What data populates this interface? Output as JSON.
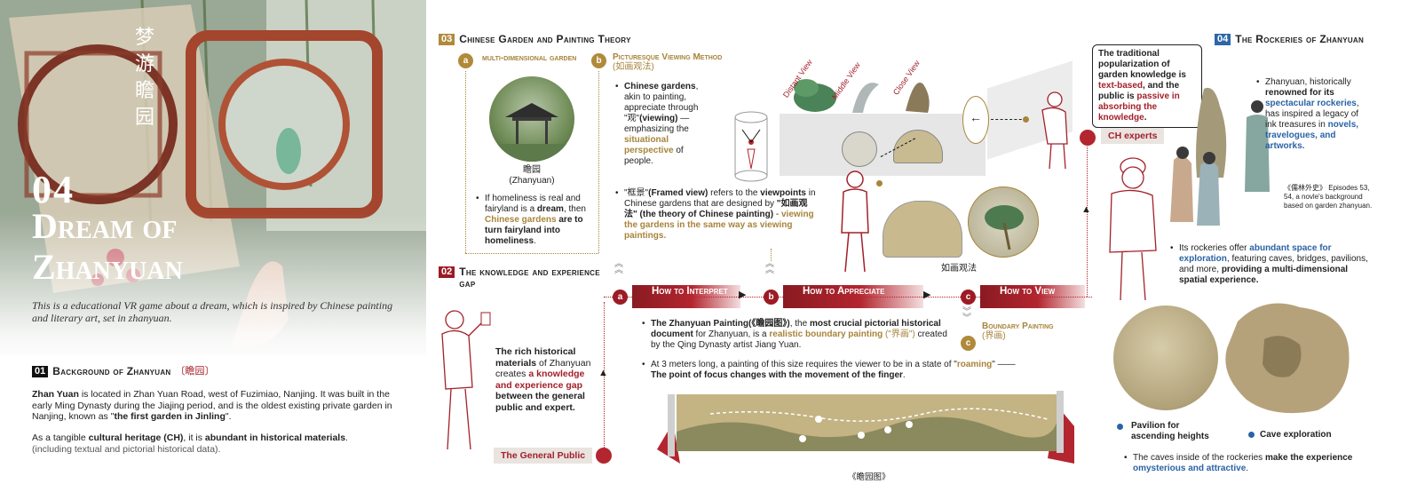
{
  "hero": {
    "number": "04",
    "title": "Dream of Zhanyuan",
    "subtitle": "This is a educational VR game about a dream, which is inspired by Chinese painting and literary art, set in zhanyuan.",
    "calligraphy": "梦游瞻园"
  },
  "sec01": {
    "badge": "01",
    "title": "Background of Zhanyuan",
    "title_cn": "〔瞻园〕",
    "p1_lead": "Zhan Yuan",
    "p1_a": " is located in Zhan Yuan Road, west of Fuzimiao, Nanjing. It was built in the early Ming Dynasty during the Jiajing period, and is the oldest existing private garden in Nanjing, known as \"",
    "p1_bold": "the first garden in Jinling",
    "p1_end": "\".",
    "p2_a": "As a tangible ",
    "p2_b1": "cultural heritage (CH)",
    "p2_b": ", it is ",
    "p2_b2": "abundant in historical materials",
    "p2_end": ".",
    "p2_note": "(including textual and pictorial historical data)."
  },
  "sec03": {
    "badge": "03",
    "title": "Chinese Garden and Painting Theory",
    "a_badge": "a",
    "a_title": "multi-dimensional garden",
    "a_caption_cn": "瞻园",
    "a_caption_en": "(Zhanyuan)",
    "a_text_1": "If homeliness is real and fairyland is a ",
    "a_text_b1": "dream",
    "a_text_2": ", then ",
    "a_text_g": "Chinese gardens",
    "a_text_b2": " are to turn fairyland into homeliness",
    "a_text_end": ".",
    "b_badge": "b",
    "b_title": "Picturesque Viewing Method",
    "b_title_cn": "(如画观法)",
    "b1_b": "Chinese gardens",
    "b1_a": ", akin to painting, appreciate through ",
    "b1_q": "\"观\"",
    "b1_v": "(viewing)",
    "b1_c": " —emphasizing the ",
    "b1_g": "situational perspective",
    "b1_d": " of people.",
    "b2_q": "\"框景\"",
    "b2_fv": "(Framed view)",
    "b2_a": " refers to the ",
    "b2_vp": "viewpoints",
    "b2_b": " in Chinese gardens that are designed by ",
    "b2_cn": "\"如画观法\"",
    "b2_theory": " (the theory of Chinese painting)",
    "b2_dash": " - ",
    "b2_gold": "viewing the gardens in the same way as viewing paintings."
  },
  "views": {
    "distant": "Distant View",
    "middle": "Middle View",
    "close": "Close View",
    "caption": "如画观法"
  },
  "sec02": {
    "badge": "02",
    "title": "The knowledge and experience gap",
    "text_1": "The rich historical materials",
    "text_2": " of Zhanyuan creates ",
    "text_red": "a knowledge and experience gap",
    "text_3": " between the general public and expert.",
    "public_label": "The General Public"
  },
  "flow": {
    "steps": [
      {
        "badge": "a",
        "label": "How to Interpret"
      },
      {
        "badge": "b",
        "label": "How to Appreciate"
      },
      {
        "badge": "c",
        "label": "How to View"
      }
    ],
    "c_sub_badge": "c",
    "c_sub_title": "Boundary Painting",
    "c_sub_cn": "(界画)"
  },
  "painting": {
    "b1_a": "The Zhanyuan Painting",
    "b1_cn": "(《瞻园图》)",
    "b1_b": ", the ",
    "b1_c": "most crucial pictorial historical document",
    "b1_d": " for Zhanyuan, is a ",
    "b1_g": "realistic boundary painting",
    "b1_g2": " (\"界画\")",
    "b1_e": " created by the Qing Dynasty artist Jiang Yuan.",
    "b2_a": "At 3 meters long, a painting of this size requires the viewer to be in a state of \"",
    "b2_g": "roaming",
    "b2_b": "\" ——",
    "b2_bold": "The point of focus changes with the movement of the finger",
    "b2_end": ".",
    "scroll_caption": "《瞻园图》"
  },
  "experts": {
    "callout_1": "The traditional popularization of garden knowledge is ",
    "callout_red1": "text-based",
    "callout_2": ", and ",
    "callout_b": "the public is",
    "callout_red2": " passive in absorbing the knowledge",
    "callout_end": ".",
    "label": "CH experts"
  },
  "sec04": {
    "badge": "04",
    "title": "The Rockeries of Zhanyuan",
    "p1_a": "Zhanyuan, historically ",
    "p1_b": "renowned for its",
    "p1_blue": " spectacular rockeries",
    "p1_c": ", has inspired a legacy of ink treasures in ",
    "p1_blue2": "novels, travelogues, and artworks.",
    "novel_note_cn": "《儒林外史》",
    "novel_note": "Episodes 53, 54, a novle's background based on garden zhanyuan.",
    "p2_a": "Its rockeries offer ",
    "p2_blue": "abundant space for exploration",
    "p2_b": ", featuring caves, bridges, pavilions, and more, ",
    "p2_bold": "providing a multi-dimensional spatial experience.",
    "legend_1": "Pavilion for ascending heights",
    "legend_2": "Cave exploration",
    "p3_a": "The caves inside of the rockeries ",
    "p3_b": "make the experience",
    "p3_blue": " omysterious and attractive",
    "p3_end": "."
  },
  "colors": {
    "gold": "#a7843b",
    "red": "#a3202a",
    "blue": "#2a63a5"
  }
}
